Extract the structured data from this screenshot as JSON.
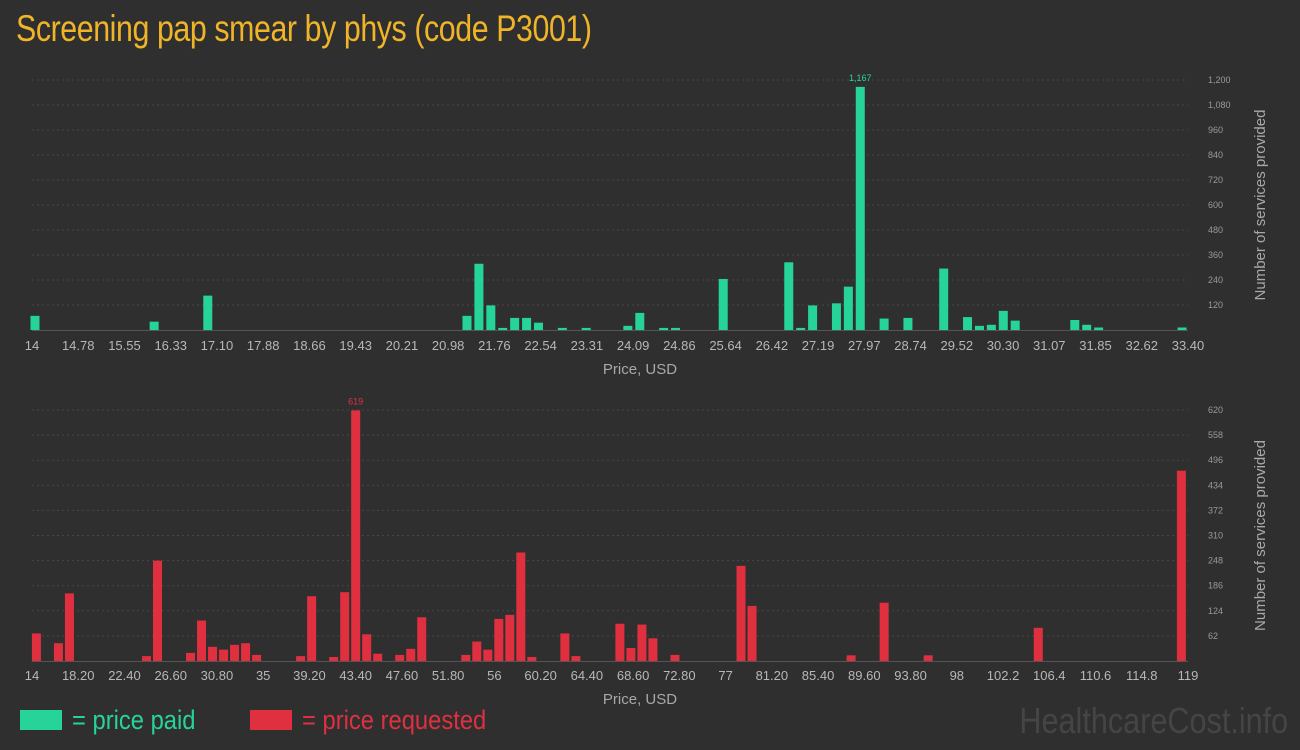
{
  "title": "Screening pap smear by phys (code P3001)",
  "watermark": "HealthcareCost.info",
  "legend": {
    "paid_label": "= price paid",
    "requested_label": "= price requested",
    "paid_color": "#26d49a",
    "requested_color": "#e0303f"
  },
  "chart_data": [
    {
      "type": "bar",
      "id": "price-paid",
      "color": "#26d49a",
      "xlabel": "Price, USD",
      "ylabel": "Number of services provided",
      "xlim": [
        14,
        33.4
      ],
      "ylim": [
        0,
        1200
      ],
      "x_ticks": [
        "14",
        "14.78",
        "15.55",
        "16.33",
        "17.10",
        "17.88",
        "18.66",
        "19.43",
        "20.21",
        "20.98",
        "21.76",
        "22.54",
        "23.31",
        "24.09",
        "24.86",
        "25.64",
        "26.42",
        "27.19",
        "27.97",
        "28.74",
        "29.52",
        "30.30",
        "31.07",
        "31.85",
        "32.62",
        "33.40"
      ],
      "y_ticks": [
        "120",
        "240",
        "360",
        "480",
        "600",
        "720",
        "840",
        "960",
        "1,080",
        "1,200"
      ],
      "peak_label": "1,167",
      "x": [
        14.05,
        16.05,
        16.95,
        21.3,
        21.5,
        21.7,
        21.9,
        22.1,
        22.3,
        22.5,
        22.9,
        23.3,
        24.0,
        24.2,
        24.6,
        24.8,
        25.6,
        26.7,
        26.9,
        27.1,
        27.5,
        27.7,
        27.9,
        28.3,
        28.7,
        29.3,
        29.7,
        29.9,
        30.1,
        30.3,
        30.5,
        31.5,
        31.7,
        31.9,
        33.3
      ],
      "values": [
        68,
        40,
        165,
        68,
        318,
        118,
        10,
        58,
        58,
        35,
        10,
        10,
        20,
        82,
        10,
        10,
        245,
        325,
        10,
        118,
        128,
        208,
        1167,
        55,
        58,
        295,
        62,
        20,
        25,
        92,
        45,
        48,
        25,
        12,
        12
      ]
    },
    {
      "type": "bar",
      "id": "price-requested",
      "color": "#e0303f",
      "xlabel": "Price, USD",
      "ylabel": "Number of services provided",
      "xlim": [
        14,
        119
      ],
      "ylim": [
        0,
        620
      ],
      "x_ticks": [
        "14",
        "18.20",
        "22.40",
        "26.60",
        "30.80",
        "35",
        "39.20",
        "43.40",
        "47.60",
        "51.80",
        "56",
        "60.20",
        "64.40",
        "68.60",
        "72.80",
        "77",
        "81.20",
        "85.40",
        "89.60",
        "93.80",
        "98",
        "102.2",
        "106.4",
        "110.6",
        "114.8",
        "119"
      ],
      "y_ticks": [
        "62",
        "124",
        "186",
        "248",
        "310",
        "372",
        "434",
        "496",
        "558",
        "620"
      ],
      "peak_label": "619",
      "x": [
        14.4,
        16.4,
        17.4,
        24.4,
        25.4,
        28.4,
        29.4,
        30.4,
        31.4,
        32.4,
        33.4,
        34.4,
        38.4,
        39.4,
        41.4,
        42.4,
        43.4,
        44.4,
        45.4,
        47.4,
        48.4,
        49.4,
        53.4,
        54.4,
        55.4,
        56.4,
        57.4,
        58.4,
        59.4,
        62.4,
        63.4,
        67.4,
        68.4,
        69.4,
        70.4,
        72.4,
        78.4,
        79.4,
        88.4,
        91.4,
        95.4,
        105.4,
        118.4
      ],
      "values": [
        68,
        44,
        167,
        12,
        248,
        20,
        100,
        35,
        28,
        40,
        44,
        15,
        12,
        160,
        10,
        170,
        619,
        66,
        18,
        15,
        30,
        108,
        15,
        48,
        28,
        104,
        114,
        268,
        10,
        68,
        12,
        92,
        32,
        90,
        56,
        15,
        235,
        136,
        14,
        144,
        14,
        82,
        470
      ]
    }
  ]
}
